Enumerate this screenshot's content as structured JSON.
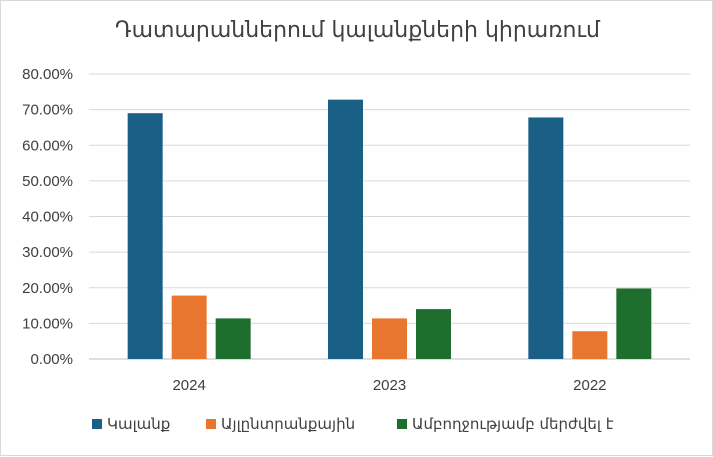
{
  "chart_data": {
    "type": "bar",
    "title": "Դատարաններում կալանքների կիրառում",
    "categories": [
      "2024",
      "2023",
      "2022"
    ],
    "series": [
      {
        "name": "Կալանք",
        "color": "#1a5f86",
        "values": [
          69.0,
          72.8,
          67.8
        ]
      },
      {
        "name": "Այլընտրանքային",
        "color": "#e8762f",
        "values": [
          17.8,
          11.4,
          7.8
        ]
      },
      {
        "name": "Ամբողջությամբ մերժվել է",
        "color": "#1e6f2e",
        "values": [
          11.4,
          14.0,
          19.8
        ]
      }
    ],
    "ylim": [
      0,
      80
    ],
    "yticks": [
      "0.00%",
      "10.00%",
      "20.00%",
      "30.00%",
      "40.00%",
      "50.00%",
      "60.00%",
      "70.00%",
      "80.00%"
    ],
    "grid": true,
    "legend": "bottom"
  }
}
